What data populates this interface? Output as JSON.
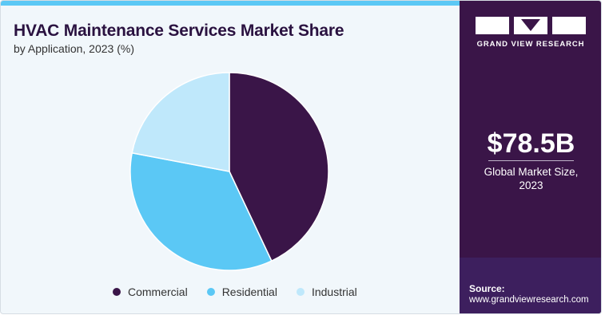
{
  "header": {
    "title": "HVAC Maintenance Services Market Share",
    "subtitle": "by Application, 2023 (%)"
  },
  "chart_data": {
    "type": "pie",
    "title": "HVAC Maintenance Services Market Share",
    "subtitle": "by Application, 2023 (%)",
    "categories": [
      "Commercial",
      "Residential",
      "Industrial"
    ],
    "values": [
      43,
      35,
      22
    ],
    "colors": [
      "#3a1548",
      "#5bc8f5",
      "#bfe8fb"
    ],
    "legend_position": "bottom"
  },
  "sidebar": {
    "brand": "GRAND VIEW RESEARCH",
    "market_size": "$78.5B",
    "market_size_label_line1": "Global Market Size,",
    "market_size_label_line2": "2023",
    "source_label": "Source:",
    "source_url": "www.grandviewresearch.com"
  }
}
